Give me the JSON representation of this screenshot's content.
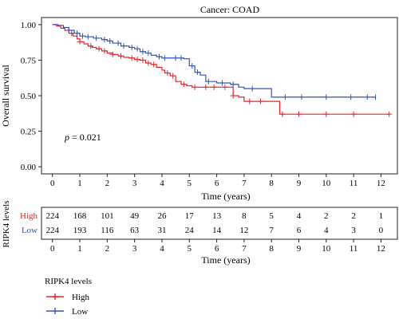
{
  "chart_data": {
    "type": "line",
    "title": "Cancer: COAD",
    "xlabel": "Time (years)",
    "ylabel": "Overall survival",
    "xlim": [
      -0.4,
      12.6
    ],
    "ylim": [
      -0.05,
      1.05
    ],
    "x_ticks": [
      "0",
      "1",
      "2",
      "3",
      "4",
      "5",
      "6",
      "7",
      "8",
      "9",
      "10",
      "11",
      "12"
    ],
    "y_ticks": [
      "0.00",
      "0.25",
      "0.50",
      "0.75",
      "1.00"
    ],
    "annotation": {
      "label": "p",
      "text": " = 0.021",
      "x": 0.3,
      "y": 0.24
    },
    "colors": {
      "High": "#e8232b",
      "Low": "#2f53b5"
    },
    "series": [
      {
        "name": "High",
        "x": [
          0,
          0.15,
          0.3,
          0.45,
          0.6,
          0.75,
          0.9,
          1.0,
          1.15,
          1.3,
          1.45,
          1.6,
          1.8,
          2.0,
          2.2,
          2.4,
          2.6,
          2.8,
          3.0,
          3.2,
          3.4,
          3.6,
          3.8,
          4.0,
          4.1,
          4.3,
          4.5,
          4.7,
          4.9,
          5.1,
          5.5,
          6.0,
          6.5,
          6.6,
          6.8,
          7.0,
          7.5,
          8.0,
          8.3,
          9.0,
          10.0,
          11.0,
          12.3
        ],
        "y": [
          1.0,
          0.99,
          0.975,
          0.96,
          0.94,
          0.92,
          0.9,
          0.88,
          0.865,
          0.85,
          0.84,
          0.83,
          0.815,
          0.8,
          0.79,
          0.78,
          0.77,
          0.765,
          0.755,
          0.75,
          0.73,
          0.72,
          0.7,
          0.68,
          0.66,
          0.64,
          0.6,
          0.58,
          0.57,
          0.56,
          0.56,
          0.56,
          0.56,
          0.5,
          0.49,
          0.46,
          0.46,
          0.46,
          0.37,
          0.37,
          0.37,
          0.37,
          0.37
        ],
        "censor_x": [
          0.7,
          1.0,
          1.4,
          1.7,
          1.9,
          2.2,
          2.5,
          2.9,
          3.1,
          3.3,
          3.5,
          3.7,
          4.2,
          4.4,
          4.8,
          5.2,
          5.6,
          5.9,
          6.3,
          6.6,
          7.2,
          7.6,
          8.4,
          9.0,
          10.0,
          11.0,
          12.3
        ]
      },
      {
        "name": "Low",
        "x": [
          0,
          0.2,
          0.4,
          0.6,
          0.8,
          1.0,
          1.2,
          1.5,
          1.8,
          2.0,
          2.2,
          2.5,
          2.8,
          3.0,
          3.2,
          3.4,
          3.6,
          3.8,
          4.0,
          4.4,
          4.8,
          5.0,
          5.2,
          5.4,
          5.6,
          6.0,
          6.5,
          6.8,
          7.0,
          7.8,
          8.0,
          9.0,
          10.0,
          11.0,
          11.8
        ],
        "y": [
          1.0,
          0.995,
          0.98,
          0.96,
          0.94,
          0.92,
          0.915,
          0.905,
          0.895,
          0.885,
          0.87,
          0.85,
          0.84,
          0.83,
          0.81,
          0.8,
          0.785,
          0.775,
          0.765,
          0.765,
          0.76,
          0.71,
          0.665,
          0.645,
          0.6,
          0.59,
          0.58,
          0.56,
          0.55,
          0.55,
          0.49,
          0.49,
          0.49,
          0.49,
          0.49
        ],
        "censor_x": [
          0.6,
          0.9,
          1.1,
          1.3,
          1.6,
          1.9,
          2.1,
          2.4,
          2.6,
          2.9,
          3.1,
          3.3,
          3.5,
          3.9,
          4.1,
          4.5,
          4.7,
          5.1,
          5.3,
          5.7,
          6.2,
          6.6,
          7.3,
          8.5,
          9.1,
          10.0,
          10.9,
          11.5,
          11.8
        ]
      }
    ]
  },
  "risk_table": {
    "title": "RIPK4 levels",
    "xlabel": "Time (years)",
    "rows": [
      {
        "label": "High",
        "values": [
          "224",
          "168",
          "101",
          "49",
          "26",
          "17",
          "13",
          "8",
          "5",
          "4",
          "2",
          "2",
          "1"
        ]
      },
      {
        "label": "Low",
        "values": [
          "224",
          "193",
          "116",
          "63",
          "31",
          "24",
          "14",
          "12",
          "7",
          "6",
          "4",
          "3",
          "0"
        ]
      }
    ]
  },
  "legend": {
    "title": "RIPK4 levels",
    "items": [
      {
        "label": "High"
      },
      {
        "label": "Low"
      }
    ]
  }
}
